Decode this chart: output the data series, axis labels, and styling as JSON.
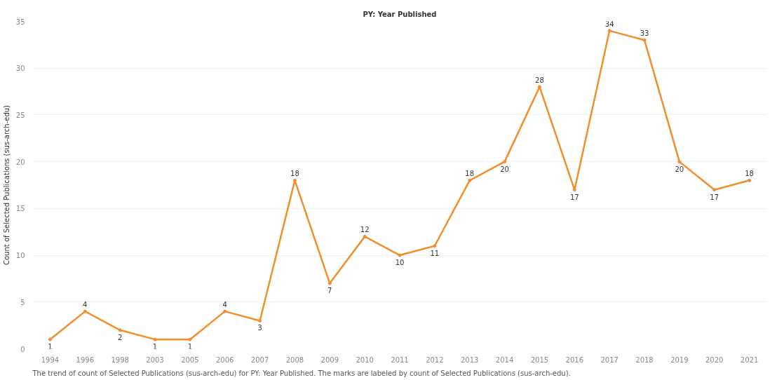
{
  "chart_data": {
    "type": "line",
    "title": "PY: Year Published",
    "ylabel": "Count of Selected Publications (sus-arch-edu)",
    "categories": [
      "1994",
      "1996",
      "1998",
      "2003",
      "2005",
      "2006",
      "2007",
      "2008",
      "2009",
      "2010",
      "2011",
      "2012",
      "2013",
      "2014",
      "2015",
      "2016",
      "2017",
      "2018",
      "2019",
      "2020",
      "2021"
    ],
    "series": [
      {
        "color": "#f28e2b",
        "values": [
          1,
          4,
          2,
          1,
          1,
          4,
          3,
          18,
          7,
          12,
          10,
          11,
          18,
          20,
          28,
          17,
          34,
          33,
          20,
          17,
          18
        ]
      }
    ],
    "ylim": [
      0,
      35
    ],
    "yticks": [
      0,
      5,
      10,
      15,
      20,
      25,
      30,
      35
    ],
    "grid": "y",
    "marker": "circle",
    "line_style": "solid",
    "data_labels": true,
    "annotations": [
      "The trend of count of Selected Publications (sus-arch-edu) for PY: Year Published.  The marks are labeled by count of Selected Publications (sus-arch-edu)."
    ]
  }
}
